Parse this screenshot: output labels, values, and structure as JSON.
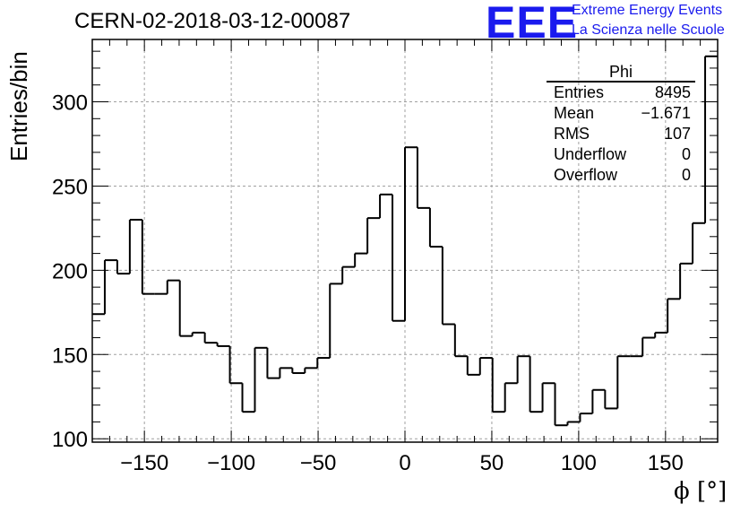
{
  "header": {
    "title": "CERN-02-2018-03-12-00087",
    "logo": {
      "text": "EEE",
      "line1": "Extreme Energy Events",
      "line2": "La Scienza nelle Scuole",
      "color": "#1a1aee"
    }
  },
  "stats_box": {
    "title": "Phi",
    "rows": [
      {
        "label": "Entries",
        "value": "8495"
      },
      {
        "label": "Mean",
        "value": "−1.671"
      },
      {
        "label": "RMS",
        "value": "107"
      },
      {
        "label": "Underflow",
        "value": "0"
      },
      {
        "label": "Overflow",
        "value": "0"
      }
    ]
  },
  "chart_data": {
    "type": "bar",
    "style": "step-histogram",
    "title": "CERN-02-2018-03-12-00087",
    "xlabel": "ϕ [°]",
    "ylabel": "Entries/bin",
    "xlim": [
      -180,
      180
    ],
    "ylim": [
      98,
      337
    ],
    "bin_width": 7.2,
    "bin_edges_start": -180,
    "values": [
      174,
      206,
      198,
      230,
      186,
      186,
      194,
      161,
      163,
      157,
      155,
      133,
      116,
      154,
      136,
      142,
      139,
      142,
      148,
      192,
      202,
      210,
      231,
      245,
      170,
      273,
      237,
      214,
      168,
      149,
      138,
      148,
      116,
      133,
      149,
      116,
      133,
      108,
      110,
      115,
      129,
      118,
      149,
      149,
      160,
      163,
      183,
      204,
      228,
      327
    ],
    "x_ticks": [
      -150,
      -100,
      -50,
      0,
      50,
      100,
      150
    ],
    "x_tick_labels": [
      "−150",
      "−100",
      "−50",
      "0",
      "50",
      "100",
      "150"
    ],
    "y_ticks": [
      100,
      150,
      200,
      250,
      300
    ],
    "y_tick_labels": [
      "100",
      "150",
      "200",
      "250",
      "300"
    ],
    "grid": true,
    "line_color": "#000000"
  }
}
